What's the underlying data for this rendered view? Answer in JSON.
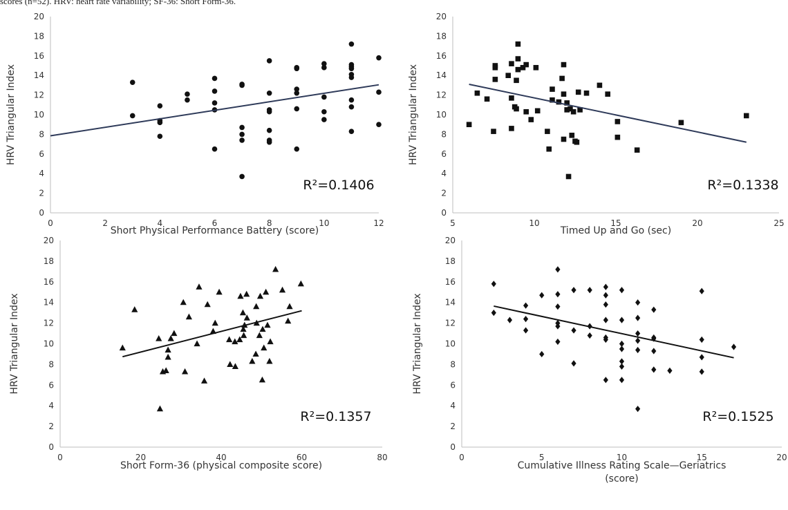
{
  "caption": "scores (n=52). HRV: heart rate variability; SF-36: Short Form-36.",
  "marker_color": "#111111",
  "chart_data": [
    {
      "type": "scatter",
      "marker": "circle",
      "ylabel": "HRV Triangular Index",
      "xlabel": [
        "Short Physical Performance Battery (score)"
      ],
      "xlim": [
        0,
        12
      ],
      "xticks": [
        "0",
        "2",
        "4",
        "6",
        "8",
        "10",
        "12"
      ],
      "ylim": [
        0,
        20
      ],
      "yticks": [
        "0",
        "2",
        "4",
        "6",
        "8",
        "10",
        "12",
        "14",
        "16",
        "18",
        "20"
      ],
      "r2": "R²=0.1406",
      "trendline": [
        [
          0,
          7.85
        ],
        [
          12,
          13.05
        ]
      ],
      "trend_color": "#2e3a59",
      "points": [
        [
          3,
          13.3
        ],
        [
          3,
          9.9
        ],
        [
          4,
          10.9
        ],
        [
          4,
          9.4
        ],
        [
          4,
          9.2
        ],
        [
          4,
          7.8
        ],
        [
          5,
          12.1
        ],
        [
          5,
          11.5
        ],
        [
          6,
          13.7
        ],
        [
          6,
          12.4
        ],
        [
          6,
          11.2
        ],
        [
          6,
          10.5
        ],
        [
          6,
          6.5
        ],
        [
          7,
          13.1
        ],
        [
          7,
          13.0
        ],
        [
          7,
          8.7
        ],
        [
          7,
          8.0
        ],
        [
          7,
          7.4
        ],
        [
          7,
          3.7
        ],
        [
          8,
          15.5
        ],
        [
          8,
          12.2
        ],
        [
          8,
          10.5
        ],
        [
          8,
          10.3
        ],
        [
          8,
          8.4
        ],
        [
          8,
          7.4
        ],
        [
          8,
          7.2
        ],
        [
          9,
          14.8
        ],
        [
          9,
          14.7
        ],
        [
          9,
          12.6
        ],
        [
          9,
          12.2
        ],
        [
          9,
          10.6
        ],
        [
          9,
          6.5
        ],
        [
          10,
          15.2
        ],
        [
          10,
          14.8
        ],
        [
          10,
          11.8
        ],
        [
          10,
          10.3
        ],
        [
          10,
          9.5
        ],
        [
          11,
          17.2
        ],
        [
          11,
          15.1
        ],
        [
          11,
          14.9
        ],
        [
          11,
          14.7
        ],
        [
          11,
          14.1
        ],
        [
          11,
          13.8
        ],
        [
          11,
          11.5
        ],
        [
          11,
          10.8
        ],
        [
          11,
          8.3
        ],
        [
          12,
          15.8
        ],
        [
          12,
          12.3
        ],
        [
          12,
          9.0
        ]
      ]
    },
    {
      "type": "scatter",
      "marker": "square",
      "ylabel": "HRV Triangular Index",
      "xlabel": [
        "Timed Up and Go (sec)"
      ],
      "xlim": [
        5,
        25
      ],
      "xticks": [
        "5",
        "10",
        "15",
        "20",
        "25"
      ],
      "ylim": [
        0,
        20
      ],
      "yticks": [
        "0",
        "2",
        "4",
        "6",
        "8",
        "10",
        "12",
        "14",
        "16",
        "18",
        "20"
      ],
      "r2": "R²=0.1338",
      "trendline": [
        [
          6,
          13.1
        ],
        [
          23,
          7.2
        ]
      ],
      "trend_color": "#2e3a59",
      "points": [
        [
          6.0,
          9.0
        ],
        [
          6.5,
          12.2
        ],
        [
          7.1,
          11.6
        ],
        [
          7.5,
          8.3
        ],
        [
          7.6,
          15.0
        ],
        [
          7.6,
          14.8
        ],
        [
          7.6,
          13.6
        ],
        [
          8.4,
          14.0
        ],
        [
          8.6,
          15.2
        ],
        [
          8.6,
          11.7
        ],
        [
          8.6,
          8.6
        ],
        [
          8.8,
          10.8
        ],
        [
          8.9,
          10.6
        ],
        [
          8.9,
          13.5
        ],
        [
          9.0,
          17.2
        ],
        [
          9.0,
          15.7
        ],
        [
          9.0,
          14.6
        ],
        [
          9.3,
          14.8
        ],
        [
          9.5,
          15.1
        ],
        [
          9.5,
          10.3
        ],
        [
          9.8,
          9.5
        ],
        [
          10.1,
          14.8
        ],
        [
          10.2,
          10.4
        ],
        [
          10.8,
          8.3
        ],
        [
          10.9,
          6.5
        ],
        [
          11.1,
          12.6
        ],
        [
          11.1,
          11.5
        ],
        [
          11.5,
          11.3
        ],
        [
          11.7,
          13.7
        ],
        [
          11.8,
          15.1
        ],
        [
          11.8,
          12.1
        ],
        [
          11.8,
          7.5
        ],
        [
          12.0,
          11.2
        ],
        [
          12.0,
          10.5
        ],
        [
          12.1,
          3.7
        ],
        [
          12.2,
          10.6
        ],
        [
          12.3,
          7.9
        ],
        [
          12.4,
          10.3
        ],
        [
          12.5,
          7.3
        ],
        [
          12.6,
          7.2
        ],
        [
          12.7,
          12.3
        ],
        [
          12.8,
          10.5
        ],
        [
          13.2,
          12.2
        ],
        [
          14.0,
          13.0
        ],
        [
          14.5,
          12.1
        ],
        [
          15.1,
          9.3
        ],
        [
          15.1,
          7.7
        ],
        [
          16.3,
          6.4
        ],
        [
          19.0,
          9.2
        ],
        [
          23.0,
          9.9
        ]
      ]
    },
    {
      "type": "scatter",
      "marker": "triangle",
      "ylabel": "HRV Triangular Index",
      "xlabel": [
        "Short Form-36 (physical composite score)"
      ],
      "xlim": [
        0,
        80
      ],
      "xticks": [
        "0",
        "20",
        "40",
        "60",
        "80"
      ],
      "ylim": [
        0,
        20
      ],
      "yticks": [
        "0",
        "2",
        "4",
        "6",
        "8",
        "10",
        "12",
        "14",
        "16",
        "18",
        "20"
      ],
      "r2": "R²=0.1357",
      "trendline": [
        [
          15.5,
          8.75
        ],
        [
          60,
          13.2
        ]
      ],
      "trend_color": "#111111",
      "points": [
        [
          15.5,
          9.6
        ],
        [
          18.5,
          13.3
        ],
        [
          24.5,
          10.5
        ],
        [
          24.8,
          3.7
        ],
        [
          25.5,
          7.3
        ],
        [
          26.3,
          7.4
        ],
        [
          26.8,
          9.4
        ],
        [
          26.8,
          8.7
        ],
        [
          27.5,
          10.5
        ],
        [
          28.3,
          11.0
        ],
        [
          30.6,
          14.0
        ],
        [
          31.0,
          7.3
        ],
        [
          32.0,
          12.6
        ],
        [
          34.0,
          10.0
        ],
        [
          34.5,
          15.5
        ],
        [
          35.8,
          6.4
        ],
        [
          36.6,
          13.8
        ],
        [
          38.0,
          11.2
        ],
        [
          38.5,
          12.0
        ],
        [
          39.5,
          15.0
        ],
        [
          42.0,
          10.4
        ],
        [
          42.2,
          8.0
        ],
        [
          43.4,
          10.2
        ],
        [
          43.5,
          7.8
        ],
        [
          44.6,
          10.4
        ],
        [
          44.8,
          14.6
        ],
        [
          45.4,
          13.0
        ],
        [
          45.5,
          11.4
        ],
        [
          45.6,
          10.8
        ],
        [
          45.8,
          11.8
        ],
        [
          46.3,
          14.8
        ],
        [
          46.4,
          12.5
        ],
        [
          47.7,
          8.3
        ],
        [
          48.6,
          9.0
        ],
        [
          48.7,
          13.6
        ],
        [
          48.8,
          12.0
        ],
        [
          49.5,
          10.8
        ],
        [
          49.7,
          14.6
        ],
        [
          50.2,
          6.5
        ],
        [
          50.3,
          11.4
        ],
        [
          50.6,
          9.6
        ],
        [
          51.1,
          15.0
        ],
        [
          51.5,
          11.8
        ],
        [
          52.0,
          8.3
        ],
        [
          52.2,
          10.2
        ],
        [
          53.5,
          17.2
        ],
        [
          55.2,
          15.2
        ],
        [
          56.6,
          12.2
        ],
        [
          57.0,
          13.6
        ],
        [
          59.8,
          15.8
        ]
      ]
    },
    {
      "type": "scatter",
      "marker": "diamond",
      "ylabel": "HRV Triangular Index",
      "xlabel": [
        "Cumulative Illness Rating Scale—Geriatrics",
        "(score)"
      ],
      "xlim": [
        0,
        20
      ],
      "xticks": [
        "0",
        "5",
        "10",
        "15",
        "20"
      ],
      "ylim": [
        0,
        20
      ],
      "yticks": [
        "0",
        "2",
        "4",
        "6",
        "8",
        "10",
        "12",
        "14",
        "16",
        "18",
        "20"
      ],
      "r2": "R²=0.1525",
      "trendline": [
        [
          2,
          13.65
        ],
        [
          17,
          8.65
        ]
      ],
      "trend_color": "#111111",
      "points": [
        [
          2,
          15.8
        ],
        [
          2,
          13.0
        ],
        [
          3,
          12.3
        ],
        [
          4,
          13.7
        ],
        [
          4,
          12.4
        ],
        [
          4,
          11.3
        ],
        [
          5,
          14.7
        ],
        [
          5,
          9.0
        ],
        [
          6,
          17.2
        ],
        [
          6,
          14.8
        ],
        [
          6,
          13.6
        ],
        [
          6,
          12.0
        ],
        [
          6,
          11.7
        ],
        [
          6,
          10.2
        ],
        [
          7,
          15.2
        ],
        [
          7,
          11.3
        ],
        [
          7,
          8.1
        ],
        [
          8,
          15.2
        ],
        [
          8,
          11.7
        ],
        [
          8,
          10.8
        ],
        [
          9,
          15.5
        ],
        [
          9,
          14.7
        ],
        [
          9,
          13.8
        ],
        [
          9,
          12.3
        ],
        [
          9,
          10.6
        ],
        [
          9,
          10.4
        ],
        [
          9,
          6.5
        ],
        [
          10,
          15.2
        ],
        [
          10,
          12.3
        ],
        [
          10,
          10.0
        ],
        [
          10,
          9.5
        ],
        [
          10,
          8.3
        ],
        [
          10,
          7.8
        ],
        [
          10,
          6.5
        ],
        [
          11,
          14.0
        ],
        [
          11,
          12.5
        ],
        [
          11,
          11.0
        ],
        [
          11,
          10.3
        ],
        [
          11,
          9.4
        ],
        [
          11,
          3.7
        ],
        [
          12,
          13.3
        ],
        [
          12,
          10.6
        ],
        [
          12,
          10.5
        ],
        [
          12,
          9.3
        ],
        [
          12,
          7.5
        ],
        [
          13,
          7.4
        ],
        [
          15,
          15.1
        ],
        [
          15,
          10.4
        ],
        [
          15,
          8.7
        ],
        [
          15,
          7.3
        ],
        [
          17,
          9.7
        ]
      ]
    }
  ]
}
